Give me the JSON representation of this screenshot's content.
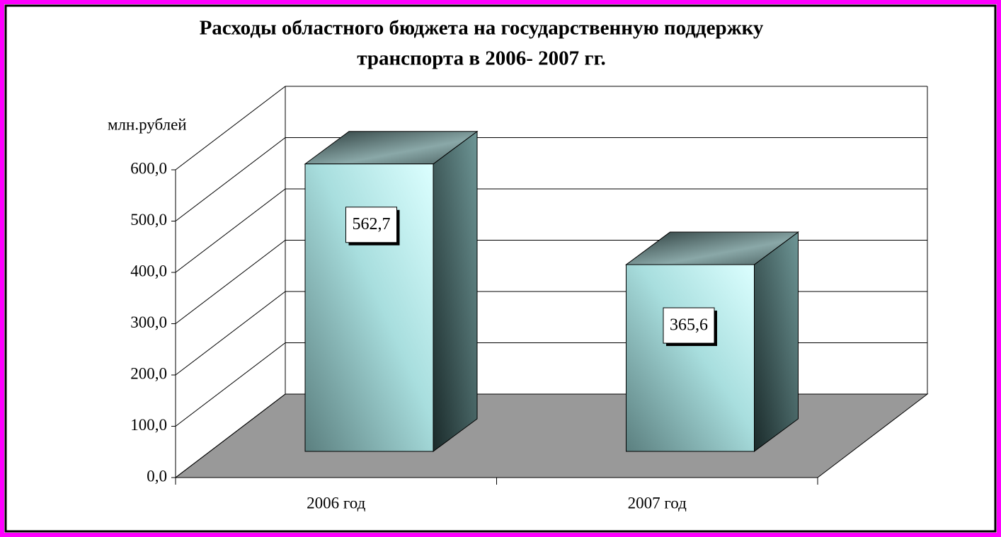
{
  "chart_data": {
    "type": "bar3d",
    "title": [
      "Расходы областного бюджета на государственную поддержку",
      "транспорта в 2006- 2007 гг."
    ],
    "y_axis_label": "млн.рублей",
    "categories": [
      "2006 год",
      "2007 год"
    ],
    "values": [
      562.7,
      365.6
    ],
    "value_labels": [
      "562,7",
      "365,6"
    ],
    "ylim": [
      0,
      600
    ],
    "yticks": [
      {
        "value": 0,
        "label": "0,0"
      },
      {
        "value": 100,
        "label": "100,0"
      },
      {
        "value": 200,
        "label": "200,0"
      },
      {
        "value": 300,
        "label": "300,0"
      },
      {
        "value": 400,
        "label": "400,0"
      },
      {
        "value": 500,
        "label": "500,0"
      },
      {
        "value": 600,
        "label": "600,0"
      }
    ],
    "grid": true
  }
}
